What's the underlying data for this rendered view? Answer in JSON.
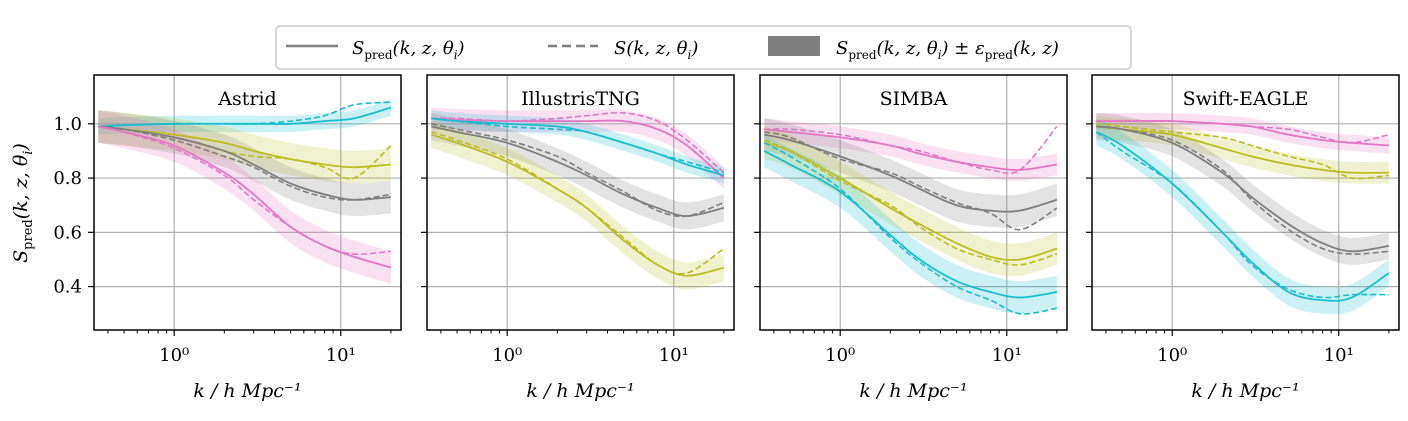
{
  "legend": {
    "pred": "S pred (k, z, θ i)",
    "sim": "S(k, z, θ i)",
    "band": "S pred (k, z, θ i) ± ε pred (k, z)"
  },
  "chart_data": {
    "type": "line",
    "xscale": "log",
    "xlim": [
      0.33,
      23
    ],
    "ylim": [
      0.24,
      1.18
    ],
    "xlabel": "k / h Mpc⁻¹",
    "ylabel": "S pred (k, z, θ i)",
    "xticks": [
      {
        "value": 1,
        "label": "10⁰"
      },
      {
        "value": 10,
        "label": "10¹"
      }
    ],
    "yticks": [
      0.4,
      0.6,
      0.8,
      1.0
    ],
    "ytick_labels": [
      "0.4",
      "0.6",
      "0.8",
      "1.0"
    ],
    "grid": true,
    "legend_position": "top-center",
    "colors": {
      "cyan": "#17becf",
      "olive": "#bcbd22",
      "gray": "#7f7f7f",
      "pink": "#e377c2"
    },
    "panels": [
      {
        "title": "Astrid",
        "series": [
          {
            "color": "cyan",
            "x": [
              0.35,
              0.5,
              1,
              2,
              3,
              5,
              8,
              12,
              20
            ],
            "pred": [
              0.99,
              0.995,
              1.0,
              1.0,
              1.0,
              1.0,
              1.01,
              1.02,
              1.06
            ],
            "sim": [
              0.99,
              0.995,
              1.0,
              1.0,
              1.0,
              1.01,
              1.03,
              1.07,
              1.08
            ],
            "err": 0.03
          },
          {
            "color": "olive",
            "x": [
              0.35,
              0.5,
              1,
              2,
              3,
              5,
              8,
              12,
              20
            ],
            "pred": [
              0.99,
              0.98,
              0.96,
              0.93,
              0.9,
              0.87,
              0.85,
              0.84,
              0.85
            ],
            "sim": [
              0.99,
              0.98,
              0.95,
              0.9,
              0.88,
              0.87,
              0.84,
              0.8,
              0.92
            ],
            "err": 0.06
          },
          {
            "color": "gray",
            "x": [
              0.35,
              0.5,
              1,
              2,
              3,
              5,
              8,
              12,
              20
            ],
            "pred": [
              0.99,
              0.98,
              0.95,
              0.9,
              0.85,
              0.78,
              0.74,
              0.72,
              0.73
            ],
            "sim": [
              0.99,
              0.98,
              0.94,
              0.88,
              0.84,
              0.77,
              0.73,
              0.72,
              0.74
            ],
            "err": 0.06
          },
          {
            "color": "pink",
            "x": [
              0.35,
              0.5,
              1,
              2,
              3,
              5,
              8,
              12,
              20
            ],
            "pred": [
              0.99,
              0.97,
              0.92,
              0.82,
              0.74,
              0.62,
              0.55,
              0.51,
              0.47
            ],
            "sim": [
              0.99,
              0.97,
              0.91,
              0.81,
              0.72,
              0.62,
              0.55,
              0.52,
              0.53
            ],
            "err": 0.06
          }
        ]
      },
      {
        "title": "IllustrisTNG",
        "series": [
          {
            "color": "pink",
            "x": [
              0.35,
              0.5,
              1,
              2,
              3,
              5,
              8,
              12,
              20
            ],
            "pred": [
              1.02,
              1.015,
              1.01,
              1.01,
              1.01,
              1.01,
              0.98,
              0.92,
              0.8
            ],
            "sim": [
              1.02,
              1.02,
              1.01,
              1.02,
              1.03,
              1.04,
              1.01,
              0.94,
              0.82
            ],
            "err": 0.04
          },
          {
            "color": "cyan",
            "x": [
              0.35,
              0.5,
              1,
              2,
              3,
              5,
              8,
              12,
              20
            ],
            "pred": [
              1.02,
              1.01,
              1.0,
              0.99,
              0.97,
              0.93,
              0.89,
              0.85,
              0.81
            ],
            "sim": [
              1.02,
              1.01,
              0.99,
              0.98,
              0.97,
              0.93,
              0.89,
              0.86,
              0.82
            ],
            "err": 0.03
          },
          {
            "color": "gray",
            "x": [
              0.35,
              0.5,
              1,
              2,
              3,
              5,
              8,
              12,
              20
            ],
            "pred": [
              0.99,
              0.97,
              0.93,
              0.86,
              0.81,
              0.74,
              0.69,
              0.66,
              0.69
            ],
            "sim": [
              1.0,
              0.98,
              0.94,
              0.88,
              0.82,
              0.75,
              0.68,
              0.66,
              0.71
            ],
            "err": 0.05
          },
          {
            "color": "olive",
            "x": [
              0.35,
              0.5,
              1,
              2,
              3,
              5,
              8,
              12,
              20
            ],
            "pred": [
              0.96,
              0.93,
              0.86,
              0.76,
              0.69,
              0.57,
              0.48,
              0.44,
              0.47
            ],
            "sim": [
              0.97,
              0.94,
              0.87,
              0.76,
              0.69,
              0.58,
              0.48,
              0.45,
              0.54
            ],
            "err": 0.05
          }
        ]
      },
      {
        "title": "SIMBA",
        "series": [
          {
            "color": "pink",
            "x": [
              0.35,
              0.5,
              1,
              2,
              3,
              5,
              8,
              12,
              20
            ],
            "pred": [
              0.98,
              0.97,
              0.95,
              0.92,
              0.89,
              0.86,
              0.84,
              0.83,
              0.85
            ],
            "sim": [
              0.98,
              0.98,
              0.96,
              0.92,
              0.9,
              0.86,
              0.83,
              0.83,
              0.99
            ],
            "err": 0.04
          },
          {
            "color": "gray",
            "x": [
              0.35,
              0.5,
              1,
              2,
              3,
              5,
              8,
              12,
              20
            ],
            "pred": [
              0.96,
              0.94,
              0.88,
              0.81,
              0.76,
              0.7,
              0.68,
              0.68,
              0.72
            ],
            "sim": [
              0.97,
              0.95,
              0.87,
              0.82,
              0.77,
              0.71,
              0.67,
              0.61,
              0.69
            ],
            "err": 0.06
          },
          {
            "color": "olive",
            "x": [
              0.35,
              0.5,
              1,
              2,
              3,
              5,
              8,
              12,
              20
            ],
            "pred": [
              0.93,
              0.9,
              0.8,
              0.69,
              0.63,
              0.56,
              0.51,
              0.5,
              0.54
            ],
            "sim": [
              0.94,
              0.9,
              0.79,
              0.7,
              0.62,
              0.54,
              0.5,
              0.48,
              0.52
            ],
            "err": 0.06
          },
          {
            "color": "cyan",
            "x": [
              0.35,
              0.5,
              1,
              2,
              3,
              5,
              8,
              12,
              20
            ],
            "pred": [
              0.9,
              0.85,
              0.75,
              0.59,
              0.5,
              0.42,
              0.38,
              0.36,
              0.38
            ],
            "sim": [
              0.93,
              0.88,
              0.76,
              0.58,
              0.49,
              0.4,
              0.35,
              0.3,
              0.32
            ],
            "err": 0.06
          }
        ]
      },
      {
        "title": "Swift-EAGLE",
        "series": [
          {
            "color": "pink",
            "x": [
              0.35,
              0.5,
              1,
              2,
              3,
              5,
              8,
              12,
              20
            ],
            "pred": [
              1.01,
              1.01,
              1.01,
              1.0,
              0.99,
              0.96,
              0.94,
              0.93,
              0.92
            ],
            "sim": [
              1.01,
              1.01,
              1.01,
              1.0,
              0.99,
              0.98,
              0.95,
              0.93,
              0.96
            ],
            "err": 0.03
          },
          {
            "color": "olive",
            "x": [
              0.35,
              0.5,
              1,
              2,
              3,
              5,
              8,
              12,
              20
            ],
            "pred": [
              0.99,
              0.98,
              0.96,
              0.91,
              0.88,
              0.85,
              0.83,
              0.82,
              0.82
            ],
            "sim": [
              1.0,
              0.99,
              0.97,
              0.95,
              0.92,
              0.88,
              0.85,
              0.8,
              0.81
            ],
            "err": 0.04
          },
          {
            "color": "gray",
            "x": [
              0.35,
              0.5,
              1,
              2,
              3,
              5,
              8,
              12,
              20
            ],
            "pred": [
              0.99,
              0.98,
              0.93,
              0.82,
              0.73,
              0.63,
              0.56,
              0.53,
              0.55
            ],
            "sim": [
              0.99,
              0.98,
              0.94,
              0.83,
              0.72,
              0.61,
              0.54,
              0.52,
              0.53
            ],
            "err": 0.05
          },
          {
            "color": "cyan",
            "x": [
              0.35,
              0.5,
              1,
              2,
              3,
              5,
              8,
              12,
              20
            ],
            "pred": [
              0.97,
              0.92,
              0.78,
              0.6,
              0.49,
              0.38,
              0.35,
              0.36,
              0.45
            ],
            "sim": [
              0.97,
              0.9,
              0.78,
              0.6,
              0.48,
              0.39,
              0.36,
              0.37,
              0.37
            ],
            "err": 0.05
          }
        ]
      }
    ]
  }
}
